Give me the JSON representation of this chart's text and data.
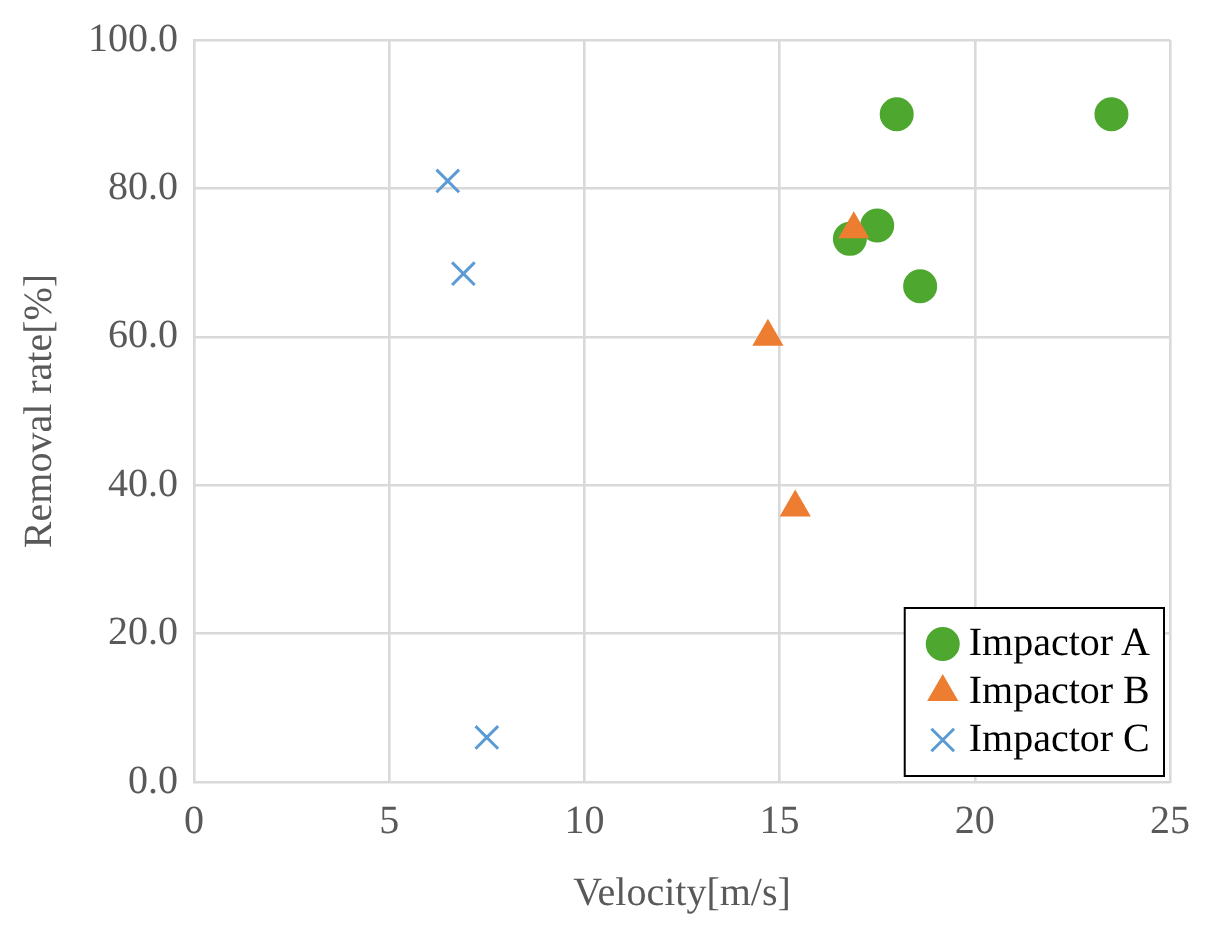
{
  "chart_data": {
    "type": "scatter",
    "xlabel": "Velocity[m/s]",
    "ylabel": "Removal rate[%]",
    "xlim": [
      0,
      25
    ],
    "xticks": [
      0,
      5,
      10,
      15,
      20,
      25
    ],
    "ylim": [
      0,
      100
    ],
    "yticks": [
      {
        "value": 0,
        "label": "0.0"
      },
      {
        "value": 20,
        "label": "20.0"
      },
      {
        "value": 40,
        "label": "40.0"
      },
      {
        "value": 60,
        "label": "60.0"
      },
      {
        "value": 80,
        "label": "80.0"
      },
      {
        "value": 100,
        "label": "100.0"
      }
    ],
    "grid": true,
    "legend": "bottom right",
    "series": [
      {
        "name": "Impactor A",
        "color": "#4ea72e",
        "marker": "circle",
        "x": [
          17.5,
          16.8,
          18,
          18.6,
          23.5
        ],
        "values": [
          75,
          73.2,
          90,
          66.8,
          90
        ]
      },
      {
        "name": "Impactor B",
        "color": "#ed7d31",
        "marker": "triangle",
        "x": [
          16.9,
          14.7,
          15.4
        ],
        "values": [
          74.5,
          60,
          37
        ]
      },
      {
        "name": "Impactor C",
        "color": "#5b9bd5",
        "marker": "cross",
        "x": [
          6.5,
          6.9,
          7.5
        ],
        "values": [
          81,
          68.5,
          6
        ]
      }
    ]
  }
}
